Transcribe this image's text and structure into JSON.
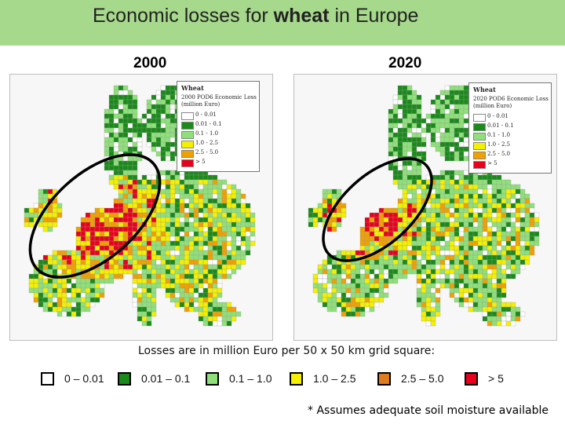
{
  "header": {
    "title_before": "Economic losses for ",
    "title_emphasis": "wheat",
    "title_after": " in Europe"
  },
  "maps": [
    {
      "year_label": "2000",
      "legend": {
        "title": "Wheat",
        "subtitle": "2000 POD6 Economic Loss",
        "unit": "(million Euro)",
        "classes": [
          "0 - 0.01",
          "0.01 - 0.1",
          "0.1 - 1.0",
          "1.0 - 2.5",
          "2.5 - 5.0",
          "> 5"
        ]
      }
    },
    {
      "year_label": "2020",
      "legend": {
        "title": "Wheat",
        "subtitle": "2020 POD6 Economic Loss",
        "unit": "(million Euro)",
        "classes": [
          "0 - 0.01",
          "0.01 - 0.1",
          "0.1 - 1.0",
          "1.0 - 2.5",
          "2.5 - 5.0",
          "> 5"
        ]
      }
    }
  ],
  "caption": "Losses are in million Euro per 50 x 50 km grid square:",
  "key": [
    {
      "label": "0 – 0.01",
      "color": "#ffffff"
    },
    {
      "label": "0.01 – 0.1",
      "color": "#1a8a1a"
    },
    {
      "label": "0.1 – 1.0",
      "color": "#8fe07a"
    },
    {
      "label": "1.0 – 2.5",
      "color": "#f4f000"
    },
    {
      "label": "2.5 – 5.0",
      "color": "#e07a1e"
    },
    {
      "label": "> 5",
      "color": "#e8001c"
    }
  ],
  "footnote": "* Assumes adequate soil moisture available",
  "colors": {
    "banner": "#a6d98b",
    "highlight_ellipse": "#000000",
    "map_class_colors": [
      "#ffffff",
      "#1a8a1a",
      "#8fe07a",
      "#f4f000",
      "#f0a000",
      "#e8001c"
    ]
  }
}
